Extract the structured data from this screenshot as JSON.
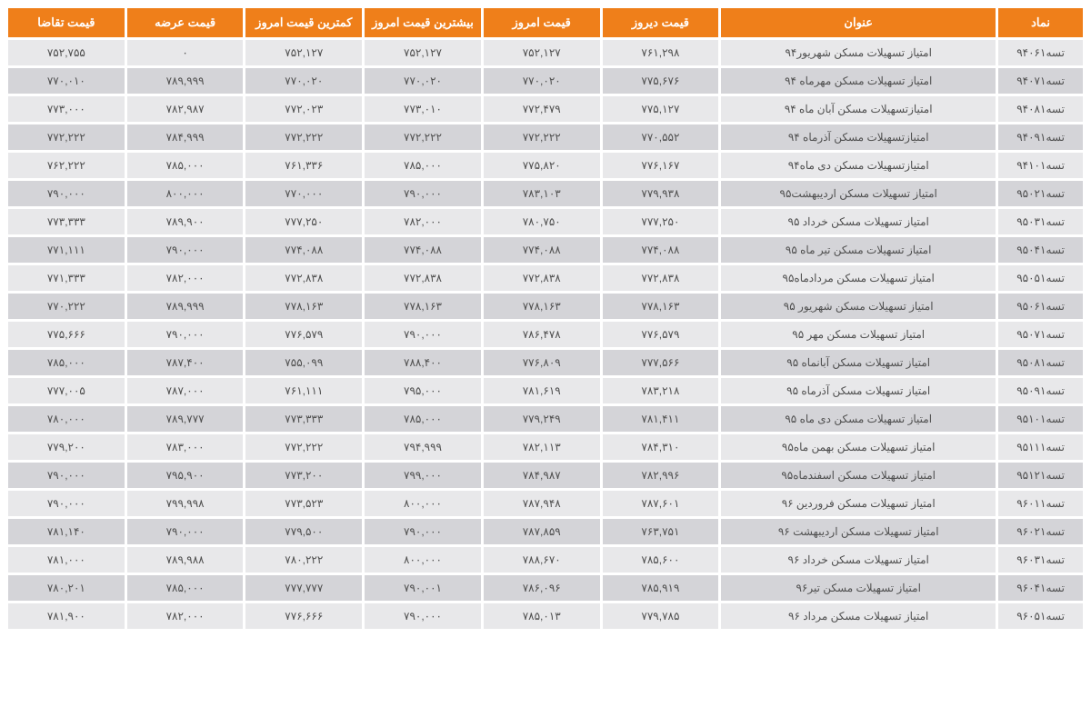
{
  "table": {
    "type": "table",
    "header_bg": "#ef7f1a",
    "header_fg": "#ffffff",
    "row_odd_bg": "#e8e8ea",
    "row_even_bg": "#d4d4d8",
    "cell_fg": "#505050",
    "header_fontsize": 13,
    "cell_fontsize": 12,
    "columns": [
      {
        "key": "symbol",
        "label": "نماد",
        "width": "8%"
      },
      {
        "key": "title",
        "label": "عنوان",
        "width": "26%"
      },
      {
        "key": "yesterday",
        "label": "قیمت دیروز",
        "width": "11%"
      },
      {
        "key": "today",
        "label": "قیمت امروز",
        "width": "11%"
      },
      {
        "key": "high",
        "label": "بیشترین قیمت امروز",
        "width": "11%"
      },
      {
        "key": "low",
        "label": "کمترین قیمت امروز",
        "width": "11%"
      },
      {
        "key": "ask",
        "label": "قیمت عرضه",
        "width": "11%"
      },
      {
        "key": "bid",
        "label": "قیمت تقاضا",
        "width": "11%"
      }
    ],
    "rows": [
      {
        "symbol": "تسه۹۴۰۶۱",
        "title": "امتیاز تسهیلات مسکن شهریور۹۴",
        "yesterday": "۷۶۱,۲۹۸",
        "today": "۷۵۲,۱۲۷",
        "high": "۷۵۲,۱۲۷",
        "low": "۷۵۲,۱۲۷",
        "ask": "۰",
        "bid": "۷۵۲,۷۵۵"
      },
      {
        "symbol": "تسه۹۴۰۷۱",
        "title": "امتیاز تسهیلات مسکن مهرماه ۹۴",
        "yesterday": "۷۷۵,۶۷۶",
        "today": "۷۷۰,۰۲۰",
        "high": "۷۷۰,۰۲۰",
        "low": "۷۷۰,۰۲۰",
        "ask": "۷۸۹,۹۹۹",
        "bid": "۷۷۰,۰۱۰"
      },
      {
        "symbol": "تسه۹۴۰۸۱",
        "title": "امتیازتسهیلات مسکن آبان ماه ۹۴",
        "yesterday": "۷۷۵,۱۲۷",
        "today": "۷۷۲,۴۷۹",
        "high": "۷۷۳,۰۱۰",
        "low": "۷۷۲,۰۲۳",
        "ask": "۷۸۲,۹۸۷",
        "bid": "۷۷۳,۰۰۰"
      },
      {
        "symbol": "تسه۹۴۰۹۱",
        "title": "امتیازتسهیلات مسکن آذرماه ۹۴",
        "yesterday": "۷۷۰,۵۵۲",
        "today": "۷۷۲,۲۲۲",
        "high": "۷۷۲,۲۲۲",
        "low": "۷۷۲,۲۲۲",
        "ask": "۷۸۴,۹۹۹",
        "bid": "۷۷۲,۲۲۲"
      },
      {
        "symbol": "تسه۹۴۱۰۱",
        "title": "امتیازتسهیلات مسکن دی ماه۹۴",
        "yesterday": "۷۷۶,۱۶۷",
        "today": "۷۷۵,۸۲۰",
        "high": "۷۸۵,۰۰۰",
        "low": "۷۶۱,۳۳۶",
        "ask": "۷۸۵,۰۰۰",
        "bid": "۷۶۲,۲۲۲"
      },
      {
        "symbol": "تسه۹۵۰۲۱",
        "title": "امتیاز تسهیلات مسکن اردیبهشت۹۵",
        "yesterday": "۷۷۹,۹۳۸",
        "today": "۷۸۳,۱۰۳",
        "high": "۷۹۰,۰۰۰",
        "low": "۷۷۰,۰۰۰",
        "ask": "۸۰۰,۰۰۰",
        "bid": "۷۹۰,۰۰۰"
      },
      {
        "symbol": "تسه۹۵۰۳۱",
        "title": "امتیاز تسهیلات مسکن خرداد ۹۵",
        "yesterday": "۷۷۷,۲۵۰",
        "today": "۷۸۰,۷۵۰",
        "high": "۷۸۲,۰۰۰",
        "low": "۷۷۷,۲۵۰",
        "ask": "۷۸۹,۹۰۰",
        "bid": "۷۷۳,۳۳۳"
      },
      {
        "symbol": "تسه۹۵۰۴۱",
        "title": "امتیاز تسهیلات مسکن تیر ماه ۹۵",
        "yesterday": "۷۷۴,۰۸۸",
        "today": "۷۷۴,۰۸۸",
        "high": "۷۷۴,۰۸۸",
        "low": "۷۷۴,۰۸۸",
        "ask": "۷۹۰,۰۰۰",
        "bid": "۷۷۱,۱۱۱"
      },
      {
        "symbol": "تسه۹۵۰۵۱",
        "title": "امتیاز تسهیلات مسکن مردادماه۹۵",
        "yesterday": "۷۷۲,۸۳۸",
        "today": "۷۷۲,۸۳۸",
        "high": "۷۷۲,۸۳۸",
        "low": "۷۷۲,۸۳۸",
        "ask": "۷۸۲,۰۰۰",
        "bid": "۷۷۱,۳۳۳"
      },
      {
        "symbol": "تسه۹۵۰۶۱",
        "title": "امتیاز تسهیلات مسکن شهریور ۹۵",
        "yesterday": "۷۷۸,۱۶۳",
        "today": "۷۷۸,۱۶۳",
        "high": "۷۷۸,۱۶۳",
        "low": "۷۷۸,۱۶۳",
        "ask": "۷۸۹,۹۹۹",
        "bid": "۷۷۰,۲۲۲"
      },
      {
        "symbol": "تسه۹۵۰۷۱",
        "title": "امتیاز تسهیلات مسکن مهر ۹۵",
        "yesterday": "۷۷۶,۵۷۹",
        "today": "۷۸۶,۴۷۸",
        "high": "۷۹۰,۰۰۰",
        "low": "۷۷۶,۵۷۹",
        "ask": "۷۹۰,۰۰۰",
        "bid": "۷۷۵,۶۶۶"
      },
      {
        "symbol": "تسه۹۵۰۸۱",
        "title": "امتیاز تسهیلات مسکن آبانماه ۹۵",
        "yesterday": "۷۷۷,۵۶۶",
        "today": "۷۷۶,۸۰۹",
        "high": "۷۸۸,۴۰۰",
        "low": "۷۵۵,۰۹۹",
        "ask": "۷۸۷,۴۰۰",
        "bid": "۷۸۵,۰۰۰"
      },
      {
        "symbol": "تسه۹۵۰۹۱",
        "title": "امتیاز تسهیلات مسکن آذرماه ۹۵",
        "yesterday": "۷۸۳,۲۱۸",
        "today": "۷۸۱,۶۱۹",
        "high": "۷۹۵,۰۰۰",
        "low": "۷۶۱,۱۱۱",
        "ask": "۷۸۷,۰۰۰",
        "bid": "۷۷۷,۰۰۵"
      },
      {
        "symbol": "تسه۹۵۱۰۱",
        "title": "امتیاز تسهیلات مسکن دی ماه ۹۵",
        "yesterday": "۷۸۱,۴۱۱",
        "today": "۷۷۹,۲۴۹",
        "high": "۷۸۵,۰۰۰",
        "low": "۷۷۳,۳۳۳",
        "ask": "۷۸۹,۷۷۷",
        "bid": "۷۸۰,۰۰۰"
      },
      {
        "symbol": "تسه۹۵۱۱۱",
        "title": "امتیاز تسهیلات مسکن بهمن ماه۹۵",
        "yesterday": "۷۸۴,۳۱۰",
        "today": "۷۸۲,۱۱۳",
        "high": "۷۹۴,۹۹۹",
        "low": "۷۷۲,۲۲۲",
        "ask": "۷۸۳,۰۰۰",
        "bid": "۷۷۹,۲۰۰"
      },
      {
        "symbol": "تسه۹۵۱۲۱",
        "title": "امتیاز تسهیلات مسکن اسفندماه۹۵",
        "yesterday": "۷۸۲,۹۹۶",
        "today": "۷۸۴,۹۸۷",
        "high": "۷۹۹,۰۰۰",
        "low": "۷۷۳,۲۰۰",
        "ask": "۷۹۵,۹۰۰",
        "bid": "۷۹۰,۰۰۰"
      },
      {
        "symbol": "تسه۹۶۰۱۱",
        "title": "امتیاز تسهیلات مسکن فروردین ۹۶",
        "yesterday": "۷۸۷,۶۰۱",
        "today": "۷۸۷,۹۴۸",
        "high": "۸۰۰,۰۰۰",
        "low": "۷۷۳,۵۲۳",
        "ask": "۷۹۹,۹۹۸",
        "bid": "۷۹۰,۰۰۰"
      },
      {
        "symbol": "تسه۹۶۰۲۱",
        "title": "امتیاز تسهیلات مسکن اردیبهشت ۹۶",
        "yesterday": "۷۶۳,۷۵۱",
        "today": "۷۸۷,۸۵۹",
        "high": "۷۹۰,۰۰۰",
        "low": "۷۷۹,۵۰۰",
        "ask": "۷۹۰,۰۰۰",
        "bid": "۷۸۱,۱۴۰"
      },
      {
        "symbol": "تسه۹۶۰۳۱",
        "title": "امتیاز تسهیلات مسکن خرداد ۹۶",
        "yesterday": "۷۸۵,۶۰۰",
        "today": "۷۸۸,۶۷۰",
        "high": "۸۰۰,۰۰۰",
        "low": "۷۸۰,۲۲۲",
        "ask": "۷۸۹,۹۸۸",
        "bid": "۷۸۱,۰۰۰"
      },
      {
        "symbol": "تسه۹۶۰۴۱",
        "title": "امتیاز تسهیلات مسکن تیر۹۶",
        "yesterday": "۷۸۵,۹۱۹",
        "today": "۷۸۶,۰۹۶",
        "high": "۷۹۰,۰۰۱",
        "low": "۷۷۷,۷۷۷",
        "ask": "۷۸۵,۰۰۰",
        "bid": "۷۸۰,۲۰۱"
      },
      {
        "symbol": "تسه۹۶۰۵۱",
        "title": "امتیاز تسهیلات مسکن مرداد ۹۶",
        "yesterday": "۷۷۹,۷۸۵",
        "today": "۷۸۵,۰۱۳",
        "high": "۷۹۰,۰۰۰",
        "low": "۷۷۶,۶۶۶",
        "ask": "۷۸۲,۰۰۰",
        "bid": "۷۸۱,۹۰۰"
      }
    ]
  }
}
